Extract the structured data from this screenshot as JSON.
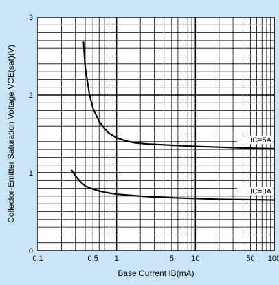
{
  "chart_data": {
    "type": "line",
    "xlabel": "Base Current IB(mA)",
    "ylabel": "Collector-Emitter Saturation Voltage VCE(sat)(V)",
    "x_scale": "log",
    "xlim": [
      0.1,
      100
    ],
    "ylim": [
      0,
      3
    ],
    "x_ticks": [
      {
        "value": 0.1,
        "label": "0.1"
      },
      {
        "value": 0.5,
        "label": "0.5"
      },
      {
        "value": 1,
        "label": "1"
      },
      {
        "value": 5,
        "label": "5"
      },
      {
        "value": 10,
        "label": "10"
      },
      {
        "value": 50,
        "label": "50"
      },
      {
        "value": 100,
        "label": "100"
      }
    ],
    "y_ticks": [
      {
        "value": 0,
        "label": "0"
      },
      {
        "value": 1,
        "label": "1"
      },
      {
        "value": 2,
        "label": "2"
      },
      {
        "value": 3,
        "label": "3"
      }
    ],
    "grid": true,
    "colors": {
      "background": "#c9e5f6",
      "plot": "#ffffff",
      "line": "#000000"
    },
    "series": [
      {
        "name": "IC=5A",
        "x": [
          0.38,
          0.4,
          0.45,
          0.5,
          0.6,
          0.7,
          0.8,
          1,
          1.3,
          1.7,
          2.5,
          4,
          6,
          10,
          20,
          40,
          100
        ],
        "y": [
          2.68,
          2.35,
          2.02,
          1.83,
          1.66,
          1.57,
          1.51,
          1.45,
          1.41,
          1.385,
          1.37,
          1.36,
          1.35,
          1.34,
          1.33,
          1.32,
          1.31
        ]
      },
      {
        "name": "IC=3A",
        "x": [
          0.27,
          0.3,
          0.35,
          0.4,
          0.5,
          0.6,
          0.8,
          1,
          1.5,
          2,
          3,
          5,
          10,
          20,
          50,
          100
        ],
        "y": [
          1.03,
          0.96,
          0.88,
          0.83,
          0.79,
          0.765,
          0.74,
          0.725,
          0.71,
          0.7,
          0.69,
          0.68,
          0.67,
          0.66,
          0.655,
          0.65
        ]
      }
    ]
  }
}
